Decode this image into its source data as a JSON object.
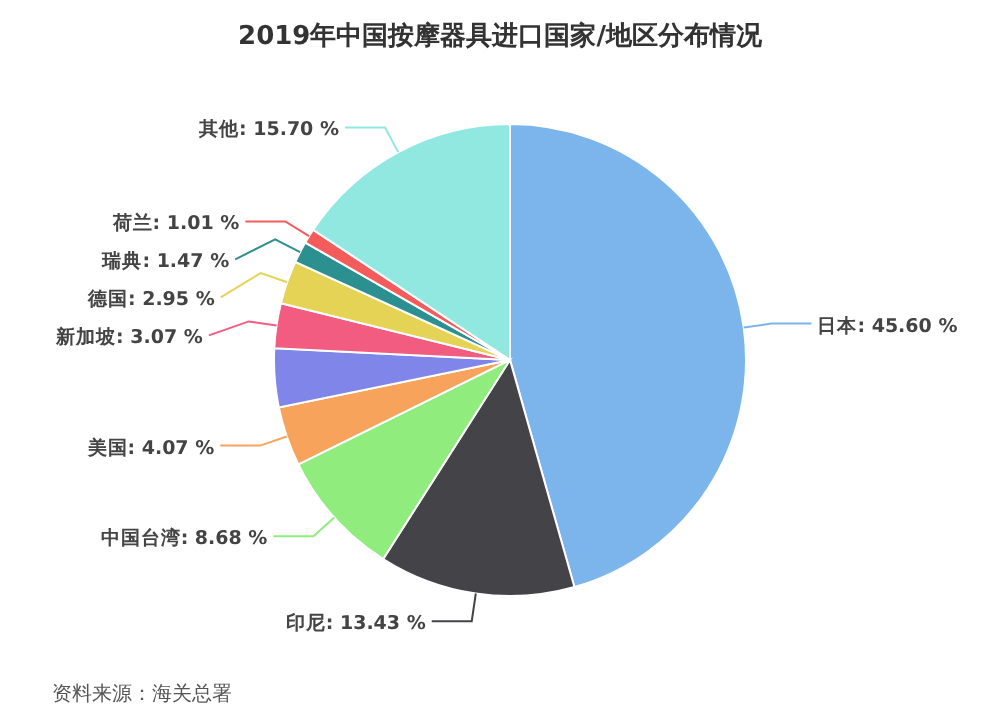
{
  "chart_data": {
    "type": "pie",
    "title": "2019年中国按摩器具进口国家/地区分布情况",
    "categories": [
      "日本",
      "印尼",
      "中国台湾",
      "美国",
      null,
      "新加坡",
      "德国",
      "瑞典",
      "荷兰",
      "其他"
    ],
    "values": [
      45.6,
      13.43,
      8.68,
      4.07,
      4.02,
      3.07,
      2.95,
      1.47,
      1.01,
      15.7
    ],
    "value_labels": [
      "45.60 %",
      "13.43 %",
      "8.68 %",
      "4.07 %",
      null,
      "3.07 %",
      "2.95 %",
      "1.47 %",
      "1.01 %",
      "15.70 %"
    ],
    "colors": [
      "#7cb5ec",
      "#434348",
      "#90ed7d",
      "#f7a35c",
      "#8085e9",
      "#f15c80",
      "#e4d354",
      "#2b908f",
      "#f45b5b",
      "#91e8e1"
    ],
    "annotations": [
      "资料来源：海关总署"
    ]
  }
}
